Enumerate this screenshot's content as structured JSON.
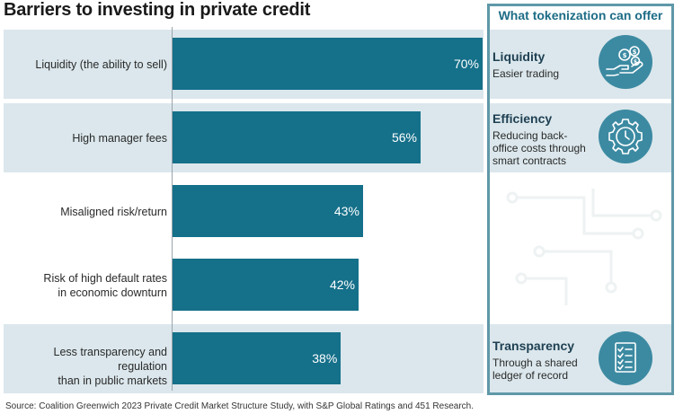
{
  "title": "Barriers to investing in private credit",
  "chart_data": {
    "type": "bar",
    "orientation": "horizontal",
    "title": "Barriers to investing in private credit",
    "categories": [
      "Liquidity (the ability to sell)",
      "High manager fees",
      "Misaligned risk/return",
      "Risk of high default rates in economic downturn",
      "Less transparency and regulation than in public markets"
    ],
    "category_lines": [
      [
        "Liquidity (the ability to sell)"
      ],
      [
        "High manager fees"
      ],
      [
        "Misaligned risk/return"
      ],
      [
        "Risk of high default rates",
        "in economic downturn"
      ],
      [
        "Less transparency and regulation",
        "than in public markets"
      ]
    ],
    "values": [
      70,
      56,
      43,
      42,
      38
    ],
    "value_labels": [
      "70%",
      "56%",
      "43%",
      "42%",
      "38%"
    ],
    "unit": "%",
    "xlim": [
      0,
      70
    ],
    "highlighted": [
      true,
      true,
      false,
      false,
      true
    ],
    "xlabel": "",
    "ylabel": ""
  },
  "panel": {
    "title": "What tokenization can offer",
    "items": [
      {
        "heading": "Liquidity",
        "text": "Easier trading",
        "icon": "hand-coins-icon",
        "row": 0
      },
      {
        "heading": "Efficiency",
        "text": "Reducing back-office costs through smart contracts",
        "icon": "gear-clock-icon",
        "row": 1
      },
      {
        "heading": "Transparency",
        "text": "Through a shared ledger of record",
        "icon": "checklist-icon",
        "row": 4
      }
    ]
  },
  "colors": {
    "bar": "#15708a",
    "band": "#dbe7ec",
    "panel_border": "#5f98a8",
    "panel_title": "#1d6c86",
    "icon_circle": "#3c8aa2"
  },
  "source": "Source: Coalition Greenwich 2023 Private Credit Market Structure Study, with S&P Global Ratings and 451 Research."
}
